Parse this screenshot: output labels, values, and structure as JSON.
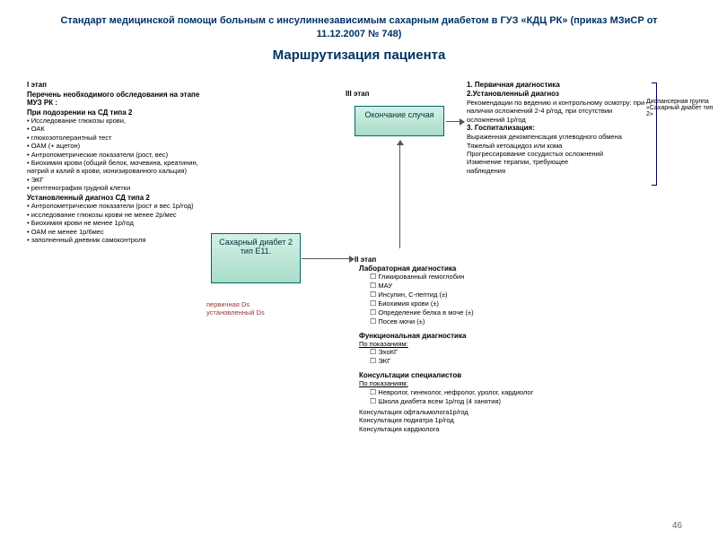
{
  "colors": {
    "title": "#003366",
    "box_border": "#006666",
    "box_bg_top": "#d4f0e8",
    "box_bg_bottom": "#a8dcc8",
    "arrow": "#555555",
    "red": "#993333",
    "background": "#ffffff"
  },
  "title": {
    "line1": "Стандарт медицинской помощи больным с инсулиннезависимым сахарным диабетом в ГУЗ «КДЦ РК» (приказ МЗиСР от 11.12.2007 № 748)",
    "line2": "Маршрутизация пациента"
  },
  "stage1": {
    "label": "I этап",
    "header": "Перечень необходимого обследования на этапе МУЗ РК :",
    "sub1": "При подозрении на СД типа 2",
    "items1": [
      "Исследование глюкозы крови,",
      "ОАК",
      "глюкозотолерантный тест",
      "ОАМ  (+ ацетон)",
      "Антропометрические показатели (рост, вес)",
      "Биохимия крови (общий белок, мочевина, креатинин, натрий и калий в крови, ионизированного кальция)",
      "ЭКГ",
      "рентгенография грудной клетки"
    ],
    "sub2": "Установленный диагноз СД типа 2",
    "items2": [
      "Антропометрические показатели (рост и вес 1р/год)",
      "исследование глюкозы крови не менее 2р/мес",
      "Биохимия крови не менее 1р/год",
      "ОАМ не менее 1р/6мес",
      "заполненный дневник самоконтроля"
    ]
  },
  "box_diabetes": "Сахарный диабет 2 тип Е11.",
  "box_end": "Окончание случая",
  "red_ds": {
    "l1": "первичная Ds",
    "l2": "установленный Ds"
  },
  "stage3_label": "III этап",
  "stage2_label": "II этап",
  "top_right": {
    "h1": "1. Первичная диагностика",
    "h2": "2.Установленный диагноз",
    "t2": "Рекомендации по ведению и контрольному осмотру: при наличии осложнений 2-4 р/год, при отсутствии осложнений 1р/год",
    "h3": "3. Госпитализация:",
    "t3a": "Выраженная декомпенсация углеводного обмена",
    "t3b": "Тяжелый кетоацидоз или кома",
    "t3c": "Прогрессирование сосудистых осложнений",
    "t3d": "Изменение терапии, требующее",
    "t3e": "наблюдения"
  },
  "bracket_label": "Диспансерная группа «Сахарный диабет тип 2»",
  "stage2": {
    "lab_head": "Лабораторная диагностика",
    "lab_items": [
      "Гликированный гемоглобин",
      "МАУ",
      "Инсулин, С-пептид (±)",
      "Биохимия крови (±)",
      " Определение белка в моче (±)",
      "Посев мочи (±)"
    ],
    "func_head": "Функциональная диагностика",
    "func_sub": "По показаниям:",
    "func_items": [
      "ЭхоКГ",
      "ЭКГ"
    ],
    "cons_head": "Консультации специалистов",
    "cons_sub": "По показаниям:",
    "cons_items": [
      "Невролог, гинеколог, нефролог, уролог, кардиолог",
      "Школа диабета всем 1р/год (4 занятия)"
    ],
    "cons_tail": [
      "Консультация офтальмолога1р/год",
      "Консультация подиатра 1р/год",
      "Консультация кардиолога"
    ]
  },
  "page_number": "46"
}
